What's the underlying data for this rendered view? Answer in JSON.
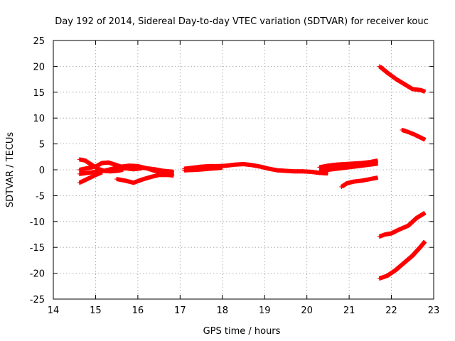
{
  "chart_data": {
    "type": "scatter",
    "title": "Day 192 of 2014, Sidereal Day-to-day VTEC variation (SDTVAR) for receiver kouc",
    "xlabel": "GPS time / hours",
    "ylabel": "SDTVAR / TECUs",
    "xlim": [
      14,
      23
    ],
    "ylim": [
      -25,
      25
    ],
    "xticks": [
      "14",
      "15",
      "16",
      "17",
      "18",
      "19",
      "20",
      "21",
      "22",
      "23"
    ],
    "yticks": [
      "25",
      "20",
      "15",
      "10",
      "5",
      "0",
      "-5",
      "-10",
      "-15",
      "-20",
      "-25"
    ],
    "grid": true,
    "marker": "plus",
    "color": "#ff0000",
    "series": [
      {
        "name": "trace-1",
        "x": [
          14.62,
          14.75,
          14.9,
          15.05,
          15.2,
          15.35,
          15.5,
          15.65
        ],
        "y": [
          2.0,
          1.8,
          1.0,
          0.2,
          -0.2,
          -0.3,
          -0.2,
          0.0
        ]
      },
      {
        "name": "trace-2",
        "x": [
          14.62,
          14.8,
          15.0,
          15.15,
          15.3,
          15.5,
          15.7,
          15.9,
          16.1
        ],
        "y": [
          0.0,
          0.3,
          0.6,
          1.3,
          1.4,
          0.9,
          0.3,
          0.1,
          0.3
        ]
      },
      {
        "name": "trace-3",
        "x": [
          14.62,
          14.8,
          15.0,
          15.2,
          15.4,
          15.6,
          15.8,
          16.0,
          16.2,
          16.4,
          16.6,
          16.85
        ],
        "y": [
          -0.8,
          -0.6,
          -0.4,
          -0.2,
          0.2,
          0.6,
          0.8,
          0.7,
          0.3,
          0.1,
          -0.2,
          -0.4
        ]
      },
      {
        "name": "trace-4",
        "x": [
          15.6,
          15.8,
          16.0,
          16.2,
          16.4,
          16.6,
          16.85
        ],
        "y": [
          0.2,
          0.4,
          0.5,
          0.3,
          -0.2,
          -0.6,
          -0.9
        ]
      },
      {
        "name": "trace-5",
        "x": [
          14.62,
          14.8,
          15.0,
          15.15
        ],
        "y": [
          -2.5,
          -1.8,
          -1.0,
          -0.5
        ]
      },
      {
        "name": "trace-6",
        "x": [
          15.5,
          15.7,
          15.9,
          16.1,
          16.3,
          16.5,
          16.7,
          16.85
        ],
        "y": [
          -1.8,
          -2.1,
          -2.5,
          -1.9,
          -1.4,
          -1.0,
          -1.0,
          -1.1
        ]
      },
      {
        "name": "trace-7",
        "x": [
          17.1,
          17.3,
          17.5,
          17.7,
          17.9,
          18.1,
          18.3,
          18.5,
          18.7,
          18.9,
          19.1,
          19.3,
          19.5,
          19.7,
          19.9,
          20.1,
          20.3,
          20.5
        ],
        "y": [
          0.2,
          0.4,
          0.6,
          0.7,
          0.7,
          0.8,
          1.0,
          1.1,
          0.9,
          0.6,
          0.2,
          -0.1,
          -0.2,
          -0.3,
          -0.3,
          -0.4,
          -0.6,
          -0.7
        ]
      },
      {
        "name": "trace-8",
        "x": [
          17.1,
          17.4,
          17.7,
          18.0
        ],
        "y": [
          -0.1,
          0.0,
          0.2,
          0.4
        ]
      },
      {
        "name": "trace-9",
        "x": [
          20.3,
          20.5,
          20.7,
          20.9,
          21.1,
          21.3,
          21.5,
          21.68
        ],
        "y": [
          0.5,
          0.8,
          1.0,
          1.1,
          1.2,
          1.3,
          1.5,
          1.8
        ]
      },
      {
        "name": "trace-10",
        "x": [
          20.3,
          20.5,
          20.7,
          20.9,
          21.1,
          21.3,
          21.5,
          21.68
        ],
        "y": [
          -0.3,
          0.0,
          0.2,
          0.4,
          0.6,
          0.8,
          1.0,
          1.2
        ]
      },
      {
        "name": "trace-11",
        "x": [
          20.82,
          20.95,
          21.1,
          21.3,
          21.5,
          21.68
        ],
        "y": [
          -3.3,
          -2.6,
          -2.3,
          -2.1,
          -1.8,
          -1.5
        ]
      },
      {
        "name": "trace-12",
        "x": [
          21.72,
          21.9,
          22.1,
          22.3,
          22.5,
          22.7,
          22.8
        ],
        "y": [
          20.0,
          18.8,
          17.6,
          16.6,
          15.6,
          15.4,
          15.1
        ]
      },
      {
        "name": "trace-13",
        "x": [
          22.25,
          22.4,
          22.55,
          22.7,
          22.8
        ],
        "y": [
          7.7,
          7.3,
          6.8,
          6.2,
          5.8
        ]
      },
      {
        "name": "trace-14",
        "x": [
          21.72,
          21.85,
          22.0,
          22.2,
          22.4,
          22.6,
          22.8
        ],
        "y": [
          -12.9,
          -12.5,
          -12.3,
          -11.5,
          -10.8,
          -9.3,
          -8.3
        ]
      },
      {
        "name": "trace-15",
        "x": [
          21.72,
          21.9,
          22.1,
          22.3,
          22.5,
          22.7,
          22.8
        ],
        "y": [
          -21.0,
          -20.5,
          -19.4,
          -18.0,
          -16.6,
          -14.8,
          -13.8
        ]
      }
    ]
  }
}
